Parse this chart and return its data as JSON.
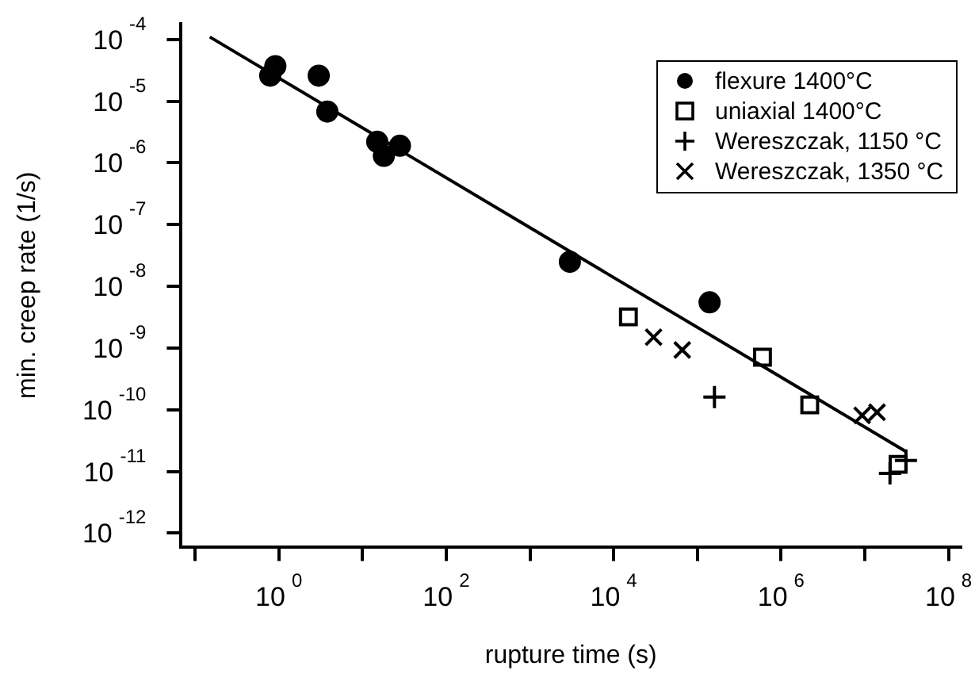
{
  "chart_data": {
    "type": "scatter",
    "xlabel": "rupture time (s)",
    "ylabel": "min. creep rate (1/s)",
    "log": "xy",
    "grid": false,
    "legend": "top right",
    "xlim": [
      0.068,
      140000000
    ],
    "ylim": [
      6.3e-13,
      0.00018
    ],
    "xticks": [
      {
        "value": 0.1,
        "label": null
      },
      {
        "value": 1,
        "label": "10$^{0}$"
      },
      {
        "value": 10,
        "label": null
      },
      {
        "value": 100,
        "label": "10$^{2}$"
      },
      {
        "value": 1000,
        "label": null
      },
      {
        "value": 10000,
        "label": "10$^{4}$"
      },
      {
        "value": 100000,
        "label": null
      },
      {
        "value": 1000000,
        "label": "10$^{6}$"
      },
      {
        "value": 10000000,
        "label": null
      },
      {
        "value": 100000000,
        "label": "10$^{8}$"
      }
    ],
    "yticks": [
      {
        "value": 0.0001,
        "label": "10$^{-4}$"
      },
      {
        "value": 1e-05,
        "label": "10$^{-5}$"
      },
      {
        "value": 1e-06,
        "label": "10$^{-6}$"
      },
      {
        "value": 1e-07,
        "label": "10$^{-7}$"
      },
      {
        "value": 1e-08,
        "label": "10$^{-8}$"
      },
      {
        "value": 1e-09,
        "label": "10$^{-9}$"
      },
      {
        "value": 1e-10,
        "label": "10$^{-10}$"
      },
      {
        "value": 1e-11,
        "label": "10$^{-11}$"
      },
      {
        "value": 1e-12,
        "label": "10$^{-12}$"
      }
    ],
    "series": [
      {
        "name": "flexure 1400°C",
        "color": "#000000",
        "marker": "circle",
        "x": [
          0.91,
          0.79,
          3.0,
          3.8,
          15,
          18,
          28,
          3000,
          140000
        ],
        "values": [
          3.7e-05,
          2.6e-05,
          2.6e-05,
          6.8e-06,
          2.2e-06,
          1.3e-06,
          1.9e-06,
          2.5e-08,
          5.5e-09
        ]
      },
      {
        "name": "uniaxial 1400°C",
        "color": "#000000",
        "marker": "square",
        "x": [
          15000,
          600000,
          2200000,
          25000000
        ],
        "values": [
          3.2e-09,
          7.1e-10,
          1.2e-10,
          1.3e-11
        ]
      },
      {
        "name": "Wereszczak, 1150 °C",
        "color": "#000000",
        "marker": "cross",
        "x": [
          160000,
          31000000,
          20000000
        ],
        "values": [
          1.6e-10,
          1.5e-11,
          9.3e-12
        ]
      },
      {
        "name": "Wereszczak, 1350 °C",
        "color": "#000000",
        "marker": "x",
        "x": [
          30000,
          66000,
          9300000,
          14000000
        ],
        "values": [
          1.5e-09,
          9.3e-10,
          8.1e-11,
          9.1e-11
        ]
      },
      {
        "type": "line",
        "color": "#000000",
        "marker": "none",
        "line_style": "solid",
        "x": [
          0.15,
          31000000
        ],
        "values": [
          0.00011,
          2.1e-11
        ]
      }
    ]
  }
}
